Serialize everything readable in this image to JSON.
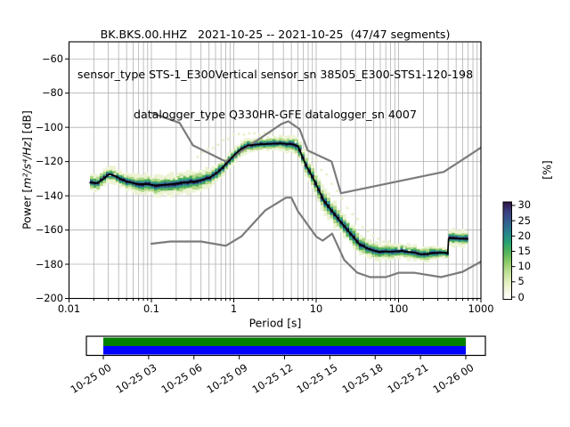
{
  "title": {
    "line1": "BK.BKS.00.HHZ   2021-10-25 -- 2021-10-25  (47/47 segments)",
    "line2": "sensor_type STS-1_E300Vertical sensor_sn 38505_E300-STS1-120-198",
    "line3": "datalogger_type Q330HR-GFE datalogger_sn 4007"
  },
  "axes": {
    "xlabel": "Period [s]",
    "ylabel_pre": "Power [",
    "ylabel_math": "m²/s⁴/Hz",
    "ylabel_post": "] [dB]",
    "colorbar_label": "[%]"
  },
  "chart_data": {
    "type": "heatmap",
    "xlim": [
      0.01,
      1000
    ],
    "ylim": [
      -200,
      -50
    ],
    "x_scale": "log",
    "grid": true,
    "x_ticks": {
      "values": [
        0.01,
        0.1,
        1,
        10,
        100,
        1000
      ],
      "labels": [
        "0.01",
        "0.1",
        "1",
        "10",
        "100",
        "1000"
      ]
    },
    "y_ticks": {
      "values": [
        -200,
        -180,
        -160,
        -140,
        -120,
        -100,
        -80,
        -60
      ],
      "labels": [
        "−200",
        "−180",
        "−160",
        "−140",
        "−120",
        "−100",
        "−80",
        "−60"
      ]
    },
    "colorbar": {
      "tick_values": [
        0,
        5,
        10,
        15,
        20,
        25,
        30
      ],
      "tick_labels": [
        "0",
        "5",
        "10",
        "15",
        "20",
        "25",
        "30"
      ],
      "max_value": 31,
      "gradient_stops": [
        [
          0.0,
          "#ffffff"
        ],
        [
          0.08,
          "#f6f9e4"
        ],
        [
          0.18,
          "#e2efbd"
        ],
        [
          0.28,
          "#bee096"
        ],
        [
          0.38,
          "#8cca67"
        ],
        [
          0.48,
          "#55b45a"
        ],
        [
          0.58,
          "#2aa270"
        ],
        [
          0.66,
          "#258a8a"
        ],
        [
          0.74,
          "#2d7190"
        ],
        [
          0.82,
          "#35568b"
        ],
        [
          0.9,
          "#3a3f7c"
        ],
        [
          0.96,
          "#35235c"
        ],
        [
          1.0,
          "#2b1243"
        ]
      ]
    },
    "noise_models": {
      "nhnm": [
        [
          0.1,
          -91.5
        ],
        [
          0.22,
          -97.4
        ],
        [
          0.32,
          -110.5
        ],
        [
          0.8,
          -120.0
        ],
        [
          3.8,
          -98.0
        ],
        [
          4.6,
          -96.5
        ],
        [
          6.3,
          -101.0
        ],
        [
          7.9,
          -113.5
        ],
        [
          15.4,
          -120.0
        ],
        [
          20.0,
          -138.5
        ],
        [
          354.8,
          -126.0
        ],
        [
          1000,
          -111.8
        ]
      ],
      "nlnm": [
        [
          0.1,
          -168.0
        ],
        [
          0.17,
          -166.7
        ],
        [
          0.4,
          -166.7
        ],
        [
          0.8,
          -169.2
        ],
        [
          1.24,
          -163.7
        ],
        [
          2.4,
          -148.6
        ],
        [
          4.3,
          -141.1
        ],
        [
          5.0,
          -141.1
        ],
        [
          6.0,
          -149.0
        ],
        [
          10.0,
          -163.8
        ],
        [
          12.0,
          -166.2
        ],
        [
          15.6,
          -162.1
        ],
        [
          21.9,
          -177.5
        ],
        [
          31.6,
          -185.0
        ],
        [
          45.0,
          -187.5
        ],
        [
          70.0,
          -187.5
        ],
        [
          101,
          -185.0
        ],
        [
          154,
          -185.0
        ],
        [
          328,
          -187.5
        ],
        [
          600,
          -184.4
        ],
        [
          1000,
          -178.5
        ]
      ]
    },
    "ppsd_mode": [
      [
        0.018,
        -132.3
      ],
      [
        0.022,
        -132.6
      ],
      [
        0.026,
        -130.2
      ],
      [
        0.031,
        -127.3
      ],
      [
        0.036,
        -128.3
      ],
      [
        0.045,
        -130.8
      ],
      [
        0.055,
        -132.2
      ],
      [
        0.07,
        -133.2
      ],
      [
        0.09,
        -133.2
      ],
      [
        0.11,
        -133.9
      ],
      [
        0.14,
        -133.6
      ],
      [
        0.18,
        -133.1
      ],
      [
        0.25,
        -132.2
      ],
      [
        0.35,
        -131.6
      ],
      [
        0.5,
        -129.6
      ],
      [
        0.65,
        -126.0
      ],
      [
        0.8,
        -121.5
      ],
      [
        1.0,
        -116.5
      ],
      [
        1.2,
        -113.0
      ],
      [
        1.5,
        -110.5
      ],
      [
        2.0,
        -110.0
      ],
      [
        3.0,
        -109.6
      ],
      [
        4.0,
        -109.5
      ],
      [
        5.0,
        -109.8
      ],
      [
        6.0,
        -110.8
      ],
      [
        7.5,
        -122.0
      ],
      [
        9.7,
        -132.0
      ],
      [
        12.4,
        -143.0
      ],
      [
        16,
        -149.5
      ],
      [
        20,
        -155.5
      ],
      [
        26,
        -162.0
      ],
      [
        33,
        -168.0
      ],
      [
        43,
        -171.0
      ],
      [
        56,
        -172.7
      ],
      [
        80,
        -172.6
      ],
      [
        110,
        -172.3
      ],
      [
        150,
        -173.0
      ],
      [
        190,
        -174.2
      ],
      [
        240,
        -173.8
      ],
      [
        300,
        -173.3
      ],
      [
        380,
        -173.2
      ],
      [
        395,
        -174.0
      ],
      [
        405,
        -165.0
      ],
      [
        430,
        -164.8
      ],
      [
        520,
        -165.0
      ],
      [
        690,
        -165.2
      ]
    ],
    "spread_scale": [
      [
        -1.75,
        0.85
      ],
      [
        -1.3,
        0.95
      ],
      [
        -0.9,
        1.1
      ],
      [
        -0.6,
        1.25
      ],
      [
        -0.3,
        1.0
      ],
      [
        0,
        0.8
      ],
      [
        0.55,
        0.75
      ],
      [
        0.85,
        1.05
      ],
      [
        1.1,
        1.3
      ],
      [
        1.45,
        1.25
      ],
      [
        1.65,
        0.95
      ],
      [
        2.0,
        0.8
      ],
      [
        2.45,
        0.85
      ],
      [
        2.58,
        0.55
      ],
      [
        2.62,
        0.9
      ],
      [
        2.84,
        0.95
      ]
    ],
    "hist_layers": [
      {
        "half_db": 5.2,
        "color": "#edf4d6"
      },
      {
        "half_db": 3.4,
        "color": "#b0d687"
      },
      {
        "half_db": 2.4,
        "color": "#50ad58"
      },
      {
        "half_db": 1.7,
        "color": "#279889"
      },
      {
        "half_db": 1.15,
        "color": "#33618d"
      },
      {
        "half_db": 0.6,
        "color": "#22103f"
      }
    ],
    "faint_traces": [
      [
        [
          0.03,
          -126.0
        ],
        [
          0.045,
          -127.5
        ],
        [
          0.06,
          -128.5
        ],
        [
          0.08,
          -129.0
        ],
        [
          0.1,
          -129.3
        ],
        [
          0.13,
          -129.2
        ],
        [
          0.17,
          -128.8
        ],
        [
          0.22,
          -128.0
        ],
        [
          0.3,
          -127.0
        ]
      ],
      [
        [
          0.35,
          -117.0
        ],
        [
          0.5,
          -112.0
        ],
        [
          0.7,
          -107.0
        ],
        [
          1.0,
          -103.5
        ],
        [
          1.4,
          -102.6
        ],
        [
          2.0,
          -103.0
        ],
        [
          3.0,
          -104.5
        ],
        [
          4.0,
          -105.8
        ],
        [
          5.5,
          -107.5
        ],
        [
          7.0,
          -111.0
        ],
        [
          9.0,
          -117.0
        ],
        [
          11.5,
          -124.0
        ],
        [
          14,
          -130.5
        ],
        [
          17,
          -136.5
        ],
        [
          21,
          -143.0
        ],
        [
          26,
          -149.5
        ],
        [
          33,
          -155.5
        ],
        [
          42,
          -160.0
        ],
        [
          55,
          -164.0
        ],
        [
          72,
          -167.0
        ],
        [
          95,
          -169.0
        ],
        [
          130,
          -170.8
        ]
      ]
    ],
    "faint_color": "#e9f2cd"
  },
  "timeline": {
    "tick_labels": [
      "10-25 00",
      "10-25 03",
      "10-25 06",
      "10-25 09",
      "10-25 12",
      "10-25 15",
      "10-25 18",
      "10-25 21",
      "10-26 00"
    ],
    "bars": [
      {
        "name": "coverage-used",
        "color": "#008000"
      },
      {
        "name": "coverage-data",
        "color": "#0000ff"
      }
    ]
  },
  "colors": {
    "grid": "#b0b0b0",
    "noise_model": "#7b7b7b",
    "mode_line": "#000000",
    "frame": "#000000",
    "text": "#000000",
    "background": "#ffffff"
  }
}
